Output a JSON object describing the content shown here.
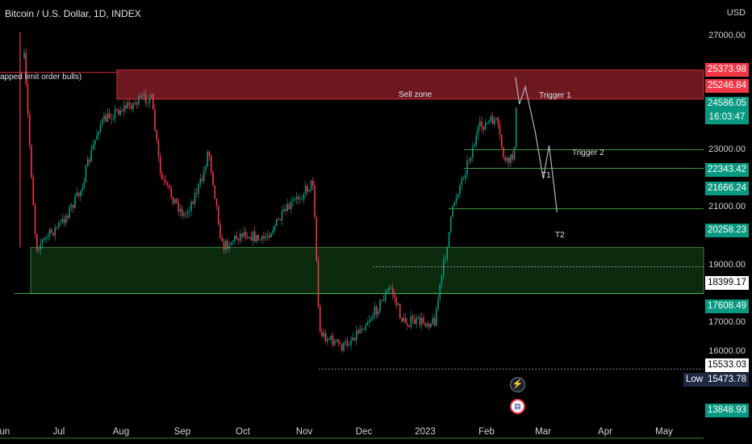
{
  "header": {
    "title": "Bitcoin / U.S. Dollar, 1D, INDEX"
  },
  "annotations": {
    "unmapped": "apped limit order bulls)",
    "sell_zone": "Sell zone",
    "trigger1": "Trigger 1",
    "trigger2": "Trigger 2",
    "t1": "T1",
    "t2": "T2"
  },
  "axis": {
    "currency": "USD",
    "ticks": [
      "27000.00",
      "23000.00",
      "21000.00",
      "19000.00",
      "17000.00",
      "16000.00"
    ]
  },
  "price_tags": [
    {
      "id": "ask",
      "label": "25373.98",
      "color": "#f23645"
    },
    {
      "id": "bid",
      "label": "25246.84",
      "color": "#f23645"
    },
    {
      "id": "last",
      "label": "24586.05",
      "color": "#089981"
    },
    {
      "id": "countdown",
      "label": "16:03:47",
      "color": "#089981"
    },
    {
      "id": "lvl1",
      "label": "22343.42",
      "color": "#089981"
    },
    {
      "id": "lvl2",
      "label": "21666.24",
      "color": "#089981"
    },
    {
      "id": "lvl3",
      "label": "20258.23",
      "color": "#089981"
    },
    {
      "id": "lvl4",
      "label": "18399.17",
      "color": "#ffffff"
    },
    {
      "id": "lvl5",
      "label": "17608.49",
      "color": "#089981"
    },
    {
      "id": "lvl6",
      "label": "15533.03",
      "color": "#ffffff"
    },
    {
      "id": "lvl7",
      "label": "13848.93",
      "color": "#089981"
    }
  ],
  "low": {
    "label": "Low",
    "value": "15473.78"
  },
  "x_labels": [
    "Jun",
    "Jul",
    "Aug",
    "Sep",
    "Oct",
    "Nov",
    "Dec",
    "2023",
    "Feb",
    "Mar",
    "Apr",
    "May"
  ],
  "colors": {
    "up": "#089981",
    "down": "#f23645",
    "sell_zone": "#f23645",
    "buy_zone": "#1b5e20"
  },
  "chart_data": {
    "type": "candlestick",
    "title": "Bitcoin / U.S. Dollar, 1D, INDEX",
    "y_unit": "USD",
    "sell_zone": [
      24300,
      25500
    ],
    "buy_zone": [
      17600,
      19000
    ],
    "levels": [
      22343.42,
      21666.24,
      20258.23,
      18399.17,
      17608.49,
      15533.03,
      13848.93
    ],
    "last_price": 24586.05,
    "low": 15473.78,
    "path_points": [
      {
        "date": "2023-02-15",
        "price": 25200
      },
      {
        "date": "2023-02-17",
        "price": 24100
      },
      {
        "date": "2023-02-20",
        "price": 24800
      },
      {
        "date": "2023-02-25",
        "price": 23000
      },
      {
        "date": "2023-03-01",
        "price": 21300
      },
      {
        "date": "2023-03-04",
        "price": 22500
      },
      {
        "date": "2023-03-08",
        "price": 20150
      }
    ],
    "waypoints": [
      {
        "date": "2022-06-12",
        "price": 26000
      },
      {
        "date": "2022-06-18",
        "price": 19000
      },
      {
        "date": "2022-07-01",
        "price": 19800
      },
      {
        "date": "2022-07-10",
        "price": 20800
      },
      {
        "date": "2022-07-20",
        "price": 23300
      },
      {
        "date": "2022-07-28",
        "price": 23800
      },
      {
        "date": "2022-08-08",
        "price": 24200
      },
      {
        "date": "2022-08-15",
        "price": 24400
      },
      {
        "date": "2022-08-20",
        "price": 21300
      },
      {
        "date": "2022-09-01",
        "price": 20000
      },
      {
        "date": "2022-09-10",
        "price": 21300
      },
      {
        "date": "2022-09-13",
        "price": 22400
      },
      {
        "date": "2022-09-20",
        "price": 19000
      },
      {
        "date": "2022-10-01",
        "price": 19500
      },
      {
        "date": "2022-10-10",
        "price": 19200
      },
      {
        "date": "2022-10-25",
        "price": 20400
      },
      {
        "date": "2022-11-05",
        "price": 21200
      },
      {
        "date": "2022-11-08",
        "price": 16500
      },
      {
        "date": "2022-11-20",
        "price": 16100
      },
      {
        "date": "2022-12-05",
        "price": 17000
      },
      {
        "date": "2022-12-14",
        "price": 17800
      },
      {
        "date": "2022-12-20",
        "price": 16800
      },
      {
        "date": "2023-01-05",
        "price": 16800
      },
      {
        "date": "2023-01-15",
        "price": 20500
      },
      {
        "date": "2023-01-28",
        "price": 23200
      },
      {
        "date": "2023-02-05",
        "price": 23500
      },
      {
        "date": "2023-02-10",
        "price": 21800
      },
      {
        "date": "2023-02-14",
        "price": 22100
      },
      {
        "date": "2023-02-16",
        "price": 24600
      }
    ]
  }
}
